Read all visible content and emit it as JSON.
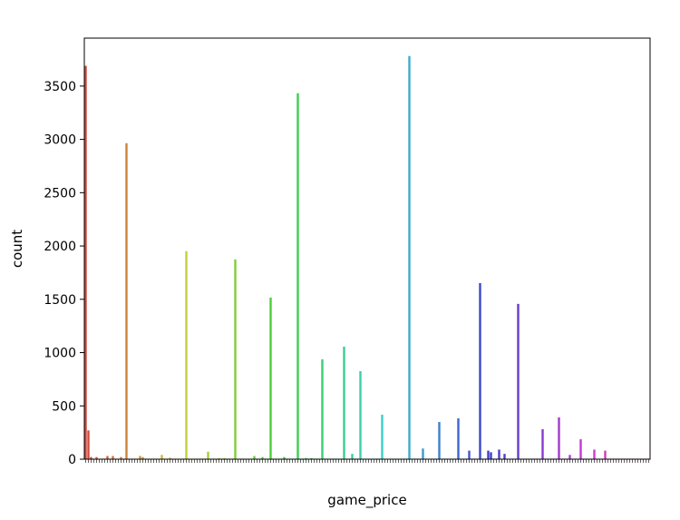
{
  "chart_data": {
    "type": "bar",
    "x_label": "game_price",
    "y_label": "count",
    "palette": "husl",
    "categories": [
      null,
      null,
      null,
      null,
      null,
      null,
      null,
      null,
      null,
      null,
      null,
      null,
      null,
      null,
      null,
      null,
      null,
      null,
      null,
      null,
      null,
      null,
      null,
      null,
      null,
      null,
      null,
      null,
      null,
      null,
      null,
      null,
      null,
      null,
      null,
      null,
      null,
      null,
      null,
      null,
      null,
      null,
      null,
      null,
      null,
      null,
      null,
      null,
      null,
      null,
      null,
      null,
      null,
      null,
      null,
      null,
      null,
      null,
      null,
      null,
      null,
      null,
      null,
      null,
      null,
      null,
      null,
      null,
      null,
      null,
      null,
      null,
      null,
      null,
      null,
      null,
      null,
      null,
      null,
      null,
      null,
      null,
      null,
      null,
      null,
      null,
      null,
      null,
      null,
      null,
      null,
      null,
      null,
      null,
      null,
      null,
      null,
      null,
      null,
      null,
      null,
      null,
      null,
      null,
      null,
      null,
      null,
      null,
      null,
      null,
      null,
      null,
      null,
      null,
      null,
      null,
      null,
      null,
      null,
      null,
      null,
      null,
      null,
      null,
      null,
      null,
      null,
      null,
      null,
      null,
      null,
      null,
      null,
      null,
      null,
      null,
      null,
      null,
      null,
      null,
      null,
      null,
      null,
      null,
      null,
      null,
      null,
      null,
      null,
      null,
      null,
      null,
      null,
      null,
      null,
      null,
      null,
      null,
      null,
      null,
      null,
      null,
      null,
      null,
      null,
      null,
      null,
      null,
      null,
      null,
      null,
      null,
      null,
      null,
      null,
      null,
      null,
      null,
      null,
      null,
      null,
      null,
      null,
      null,
      null,
      null,
      null,
      null,
      null,
      null,
      null,
      null,
      null,
      null,
      null,
      null,
      null,
      null,
      null,
      null,
      null,
      null,
      null,
      null,
      null,
      null,
      null,
      null
    ],
    "values": [
      3690,
      270,
      20,
      5,
      20,
      5,
      5,
      5,
      30,
      5,
      30,
      5,
      5,
      20,
      5,
      2964,
      5,
      5,
      5,
      5,
      30,
      20,
      5,
      5,
      5,
      5,
      5,
      5,
      40,
      5,
      5,
      15,
      5,
      5,
      5,
      5,
      5,
      1951,
      5,
      5,
      5,
      5,
      5,
      5,
      5,
      70,
      5,
      5,
      5,
      10,
      5,
      10,
      5,
      5,
      5,
      1874,
      5,
      5,
      5,
      5,
      5,
      5,
      30,
      5,
      5,
      20,
      5,
      5,
      1516,
      5,
      5,
      5,
      5,
      20,
      5,
      5,
      5,
      5,
      3433,
      5,
      5,
      10,
      5,
      10,
      5,
      5,
      5,
      937,
      5,
      5,
      5,
      5,
      5,
      5,
      5,
      1056,
      5,
      5,
      50,
      5,
      5,
      826,
      5,
      5,
      5,
      5,
      5,
      5,
      5,
      417,
      5,
      5,
      5,
      5,
      5,
      5,
      5,
      5,
      5,
      3782,
      5,
      5,
      5,
      5,
      100,
      5,
      5,
      5,
      5,
      5,
      349,
      5,
      5,
      5,
      5,
      5,
      5,
      383,
      5,
      5,
      5,
      80,
      5,
      5,
      5,
      1652,
      5,
      5,
      80,
      65,
      5,
      5,
      90,
      5,
      50,
      5,
      5,
      5,
      5,
      1457,
      5,
      5,
      5,
      5,
      5,
      5,
      5,
      5,
      281,
      5,
      5,
      5,
      5,
      5,
      392,
      5,
      5,
      5,
      40,
      5,
      5,
      5,
      187,
      5,
      5,
      5,
      5,
      90,
      5,
      5,
      5,
      80,
      5,
      5,
      5,
      5,
      5,
      5,
      5,
      5,
      5,
      5,
      5,
      5,
      5,
      5,
      5,
      5
    ],
    "ylim": [
      0,
      3950
    ],
    "yticks": [
      0,
      500,
      1000,
      1500,
      2000,
      2500,
      3000,
      3500
    ]
  }
}
